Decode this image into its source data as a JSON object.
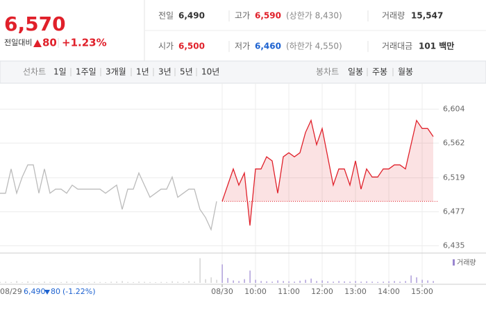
{
  "quote": {
    "price": "6,570",
    "change_label": "전일대비",
    "change": "80",
    "change_pct": "+1.23%"
  },
  "stats": [
    [
      {
        "label": "전일",
        "value": "6,490"
      },
      {
        "label": "고가",
        "value": "6,590",
        "note": "(상한가 8,430)"
      },
      {
        "label": "거래량",
        "value": "15,547"
      }
    ],
    [
      {
        "label": "시가",
        "value": "6,500"
      },
      {
        "label": "저가",
        "value": "6,460",
        "note": "(하한가 4,550)"
      },
      {
        "label": "거래대금",
        "value": "101 백만"
      }
    ]
  ],
  "tabs": {
    "line_label": "선차트",
    "line_options": [
      "1일",
      "1주일",
      "3개월",
      "1년",
      "3년",
      "5년",
      "10년"
    ],
    "selected": "1일",
    "candle_label": "봉차트",
    "candle_options": [
      "일봉",
      "주봉",
      "월봉"
    ]
  },
  "chart_data": {
    "type": "line",
    "categories": [
      null,
      null,
      null,
      null,
      null,
      null,
      null,
      null,
      null,
      null,
      null,
      null,
      null,
      null,
      null,
      null,
      null,
      null,
      null,
      null,
      null,
      null,
      null,
      null,
      null,
      null,
      null,
      null,
      null,
      null,
      null,
      null,
      null,
      null,
      null,
      null,
      null,
      null,
      null,
      null,
      "08/30",
      null,
      null,
      null,
      null,
      null,
      "10:00",
      null,
      null,
      null,
      null,
      null,
      "11:00",
      null,
      null,
      null,
      null,
      null,
      "12:00",
      null,
      null,
      null,
      null,
      null,
      "13:00",
      null,
      null,
      null,
      null,
      null,
      "14:00",
      null,
      null,
      null,
      null,
      null,
      "15:00",
      null,
      null
    ],
    "series": [
      {
        "color": "#bbbbbb",
        "values": [
          6500,
          6500,
          6530,
          6500,
          6520,
          6535,
          6535,
          6500,
          6530,
          6500,
          6505,
          6505,
          6500,
          6510,
          6505,
          6505,
          6505,
          6505,
          6505,
          6500,
          6505,
          6510,
          6480,
          6505,
          6505,
          6525,
          6510,
          6495,
          6500,
          6505,
          6505,
          6520,
          6495,
          6500,
          6505,
          6505,
          6480,
          6470,
          6455,
          6490,
          null,
          null,
          null,
          null,
          null,
          null,
          null,
          null,
          null,
          null,
          null,
          null,
          null,
          null,
          null,
          null,
          null,
          null,
          null,
          null,
          null,
          null,
          null,
          null,
          null,
          null,
          null,
          null,
          null,
          null,
          null,
          null,
          null,
          null,
          null,
          null,
          null,
          null,
          null
        ]
      },
      {
        "color": "#e0202a",
        "values": [
          null,
          null,
          null,
          null,
          null,
          null,
          null,
          null,
          null,
          null,
          null,
          null,
          null,
          null,
          null,
          null,
          null,
          null,
          null,
          null,
          null,
          null,
          null,
          null,
          null,
          null,
          null,
          null,
          null,
          null,
          null,
          null,
          null,
          null,
          null,
          null,
          null,
          null,
          null,
          null,
          6490,
          6510,
          6530,
          6510,
          6525,
          6460,
          6530,
          6530,
          6545,
          6540,
          6500,
          6545,
          6550,
          6545,
          6550,
          6575,
          6590,
          6560,
          6580,
          6545,
          6510,
          6530,
          6530,
          6510,
          6540,
          6505,
          6530,
          6520,
          6520,
          6530,
          6530,
          6535,
          6535,
          6530,
          6560,
          6590,
          6580,
          6580,
          6570
        ]
      }
    ],
    "reference_line": 6490,
    "ylim": [
      6426,
      6636
    ],
    "yticks": [
      {
        "value": 6604,
        "label": "6,604"
      },
      {
        "value": 6562,
        "label": "6,562"
      },
      {
        "value": 6519,
        "label": "6,519"
      },
      {
        "value": 6477,
        "label": "6,477"
      },
      {
        "value": 6435,
        "label": "6,435"
      }
    ],
    "grid": true,
    "volume": {
      "label": "거래량",
      "ylim": [
        0,
        4500
      ],
      "series": [
        {
          "color": "#c8c8c8",
          "values": [
            150,
            200,
            120,
            300,
            100,
            250,
            180,
            120,
            200,
            150,
            100,
            120,
            220,
            150,
            130,
            100,
            110,
            160,
            140,
            120,
            180,
            210,
            300,
            150,
            120,
            200,
            170,
            130,
            110,
            150,
            140,
            260,
            180,
            120,
            300,
            200,
            4000,
            600,
            900,
            500,
            null,
            null,
            null,
            null,
            null,
            null,
            null,
            null,
            null,
            null,
            null,
            null,
            null,
            null,
            null,
            null,
            null,
            null,
            null,
            null,
            null,
            null,
            null,
            null,
            null,
            null,
            null,
            null,
            null,
            null,
            null,
            null,
            null,
            null,
            null,
            null,
            null,
            null,
            null
          ]
        },
        {
          "color": "#9a86d0",
          "values": [
            null,
            null,
            null,
            null,
            null,
            null,
            null,
            null,
            null,
            null,
            null,
            null,
            null,
            null,
            null,
            null,
            null,
            null,
            null,
            null,
            null,
            null,
            null,
            null,
            null,
            null,
            null,
            null,
            null,
            null,
            null,
            null,
            null,
            null,
            null,
            null,
            null,
            null,
            null,
            null,
            3000,
            800,
            400,
            300,
            600,
            2000,
            500,
            300,
            250,
            200,
            400,
            300,
            250,
            200,
            350,
            500,
            700,
            300,
            400,
            250,
            200,
            300,
            250,
            200,
            300,
            200,
            250,
            200,
            150,
            200,
            250,
            300,
            200,
            300,
            1200,
            900,
            500,
            400,
            300
          ]
        }
      ]
    }
  },
  "previous_day": {
    "date": "08/29",
    "close": "6,490",
    "change": "80",
    "change_pct": "(-1.22%)"
  }
}
